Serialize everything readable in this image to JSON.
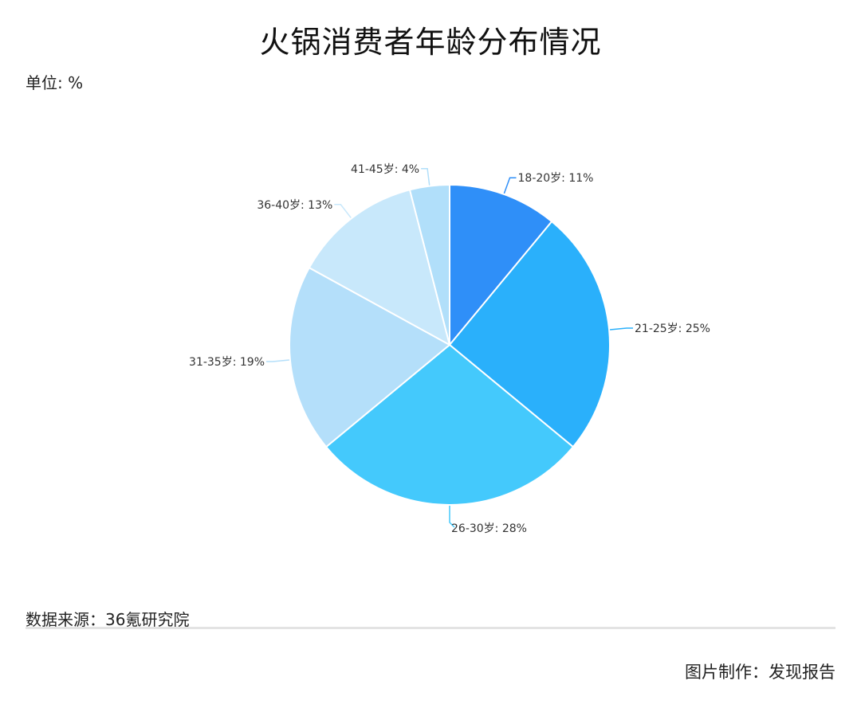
{
  "title": "火锅消费者年龄分布情况",
  "unit_label": "单位: %",
  "source_label": "数据来源：36氪研究院",
  "credit_label": "图片制作：发现报告",
  "chart_data": {
    "type": "pie",
    "categories": [
      "18-20岁",
      "21-25岁",
      "26-30岁",
      "31-35岁",
      "36-40岁",
      "41-45岁"
    ],
    "values": [
      11,
      25,
      28,
      19,
      13,
      4
    ],
    "labels": [
      "18-20岁: 11%",
      "21-25岁: 25%",
      "26-30岁: 28%",
      "31-35岁: 19%",
      "36-40岁: 13%",
      "41-45岁: 4%"
    ],
    "colors": [
      "#2f8ff8",
      "#2ab0fb",
      "#44c9fc",
      "#b4dffa",
      "#c8e8fb",
      "#b1dffa"
    ],
    "start_angle": "12 o'clock",
    "direction": "clockwise"
  }
}
